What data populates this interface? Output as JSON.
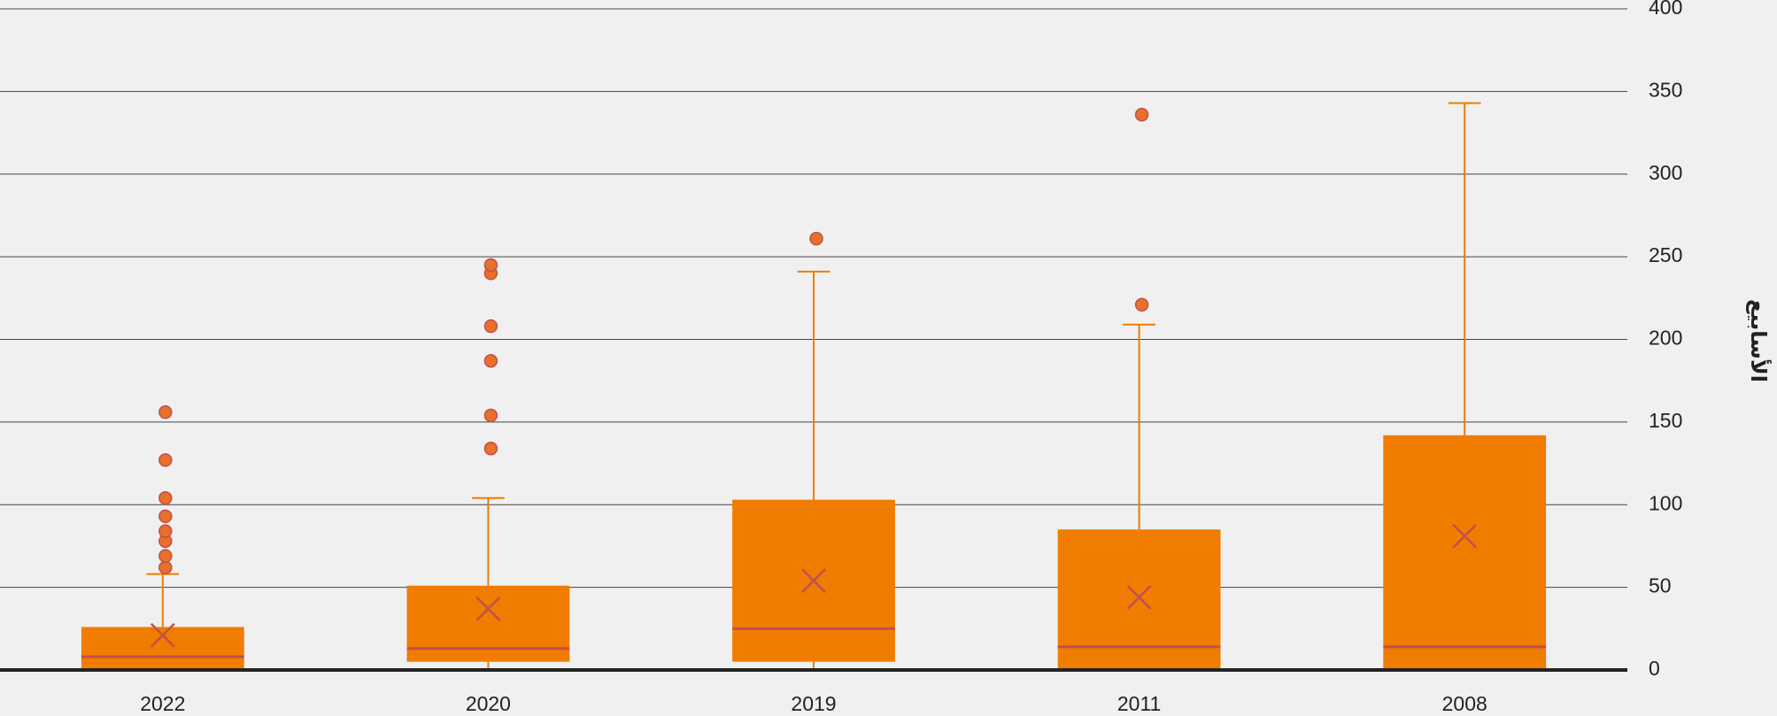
{
  "chart_data": {
    "type": "box",
    "y_label": "الأسابيع",
    "categories": [
      "2022",
      "2020",
      "2019",
      "2011",
      "2008"
    ],
    "ylim": [
      0,
      400
    ],
    "yticks": [
      0,
      50,
      100,
      150,
      200,
      250,
      300,
      350,
      400
    ],
    "grid": true,
    "color": "#f07c00",
    "median_color": "#c0504d",
    "outlier_color": "#e8702a",
    "boxes": [
      {
        "min": 0,
        "q1": 1,
        "median": 8,
        "q3": 26,
        "max": 58,
        "mean": 21,
        "outliers": [
          62,
          69,
          78,
          84,
          93,
          104,
          127,
          156
        ]
      },
      {
        "min": 0,
        "q1": 5,
        "median": 13,
        "q3": 51,
        "max": 104,
        "mean": 37,
        "outliers": [
          134,
          154,
          187,
          208,
          240,
          245
        ]
      },
      {
        "min": 0,
        "q1": 5,
        "median": 25,
        "q3": 103,
        "max": 241,
        "mean": 54,
        "outliers": [
          261
        ]
      },
      {
        "min": 0,
        "q1": 1,
        "median": 14,
        "q3": 85,
        "max": 209,
        "mean": 44,
        "outliers": [
          221,
          336
        ]
      },
      {
        "min": 0,
        "q1": 1,
        "median": 14,
        "q3": 142,
        "max": 343,
        "mean": 81,
        "outliers": []
      }
    ]
  }
}
